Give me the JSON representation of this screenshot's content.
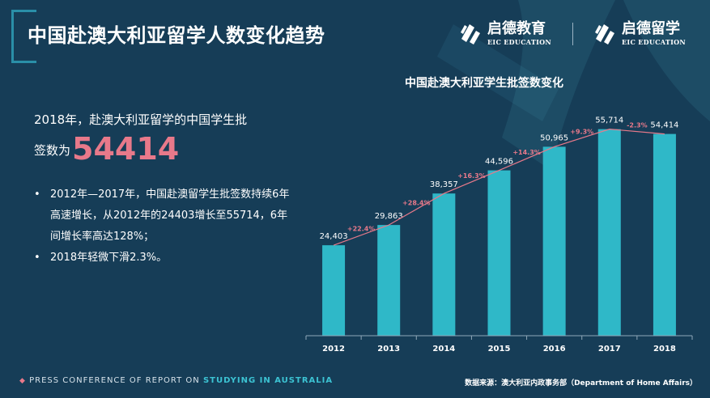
{
  "header": {
    "title": "中国赴澳大利亚留学人数变化趋势",
    "logo1": {
      "cn": "启德教育",
      "en": "EIC EDUCATION"
    },
    "logo2": {
      "cn": "启德留学",
      "en": "EIC EDUCATION"
    }
  },
  "intro": {
    "text_line1": "2018年，赴澳大利亚留学的中国学生批",
    "text_line2": "签数为",
    "highlight": "54414"
  },
  "bullets": [
    "2012年—2017年，中国赴澳留学生批签数持续6年高速增长，从2012年的24403增长至55714，6年间增长率高达128%；",
    "2018年轻微下滑2.3%。"
  ],
  "footer": {
    "prefix": "PRESS CONFERENCE OF REPORT ON",
    "highlight": "STUDYING IN AUSTRALIA",
    "source": "数据来源：澳大利亚内政事务部（Department of Home Affairs）"
  },
  "colors": {
    "background": "#163d57",
    "bar": "#2fb8c8",
    "growth_line": "#e8798a",
    "accent": "#3cc3d3"
  },
  "chart_data": {
    "type": "bar",
    "title": "中国赴澳大利亚学生批签数变化",
    "categories": [
      "2012",
      "2013",
      "2014",
      "2015",
      "2016",
      "2017",
      "2018"
    ],
    "values": [
      24403,
      29863,
      38357,
      44596,
      50965,
      55714,
      54414
    ],
    "value_labels": [
      "24,403",
      "29,863",
      "38,357",
      "44,596",
      "50,965",
      "55,714",
      "54,414"
    ],
    "growth_labels": [
      "+22.4%",
      "+28.4%",
      "+16.3%",
      "+14.3%",
      "+9.3%",
      "-2.3%"
    ],
    "ylim": [
      0,
      60000
    ],
    "xlabel": "",
    "ylabel": "",
    "grid": false
  }
}
